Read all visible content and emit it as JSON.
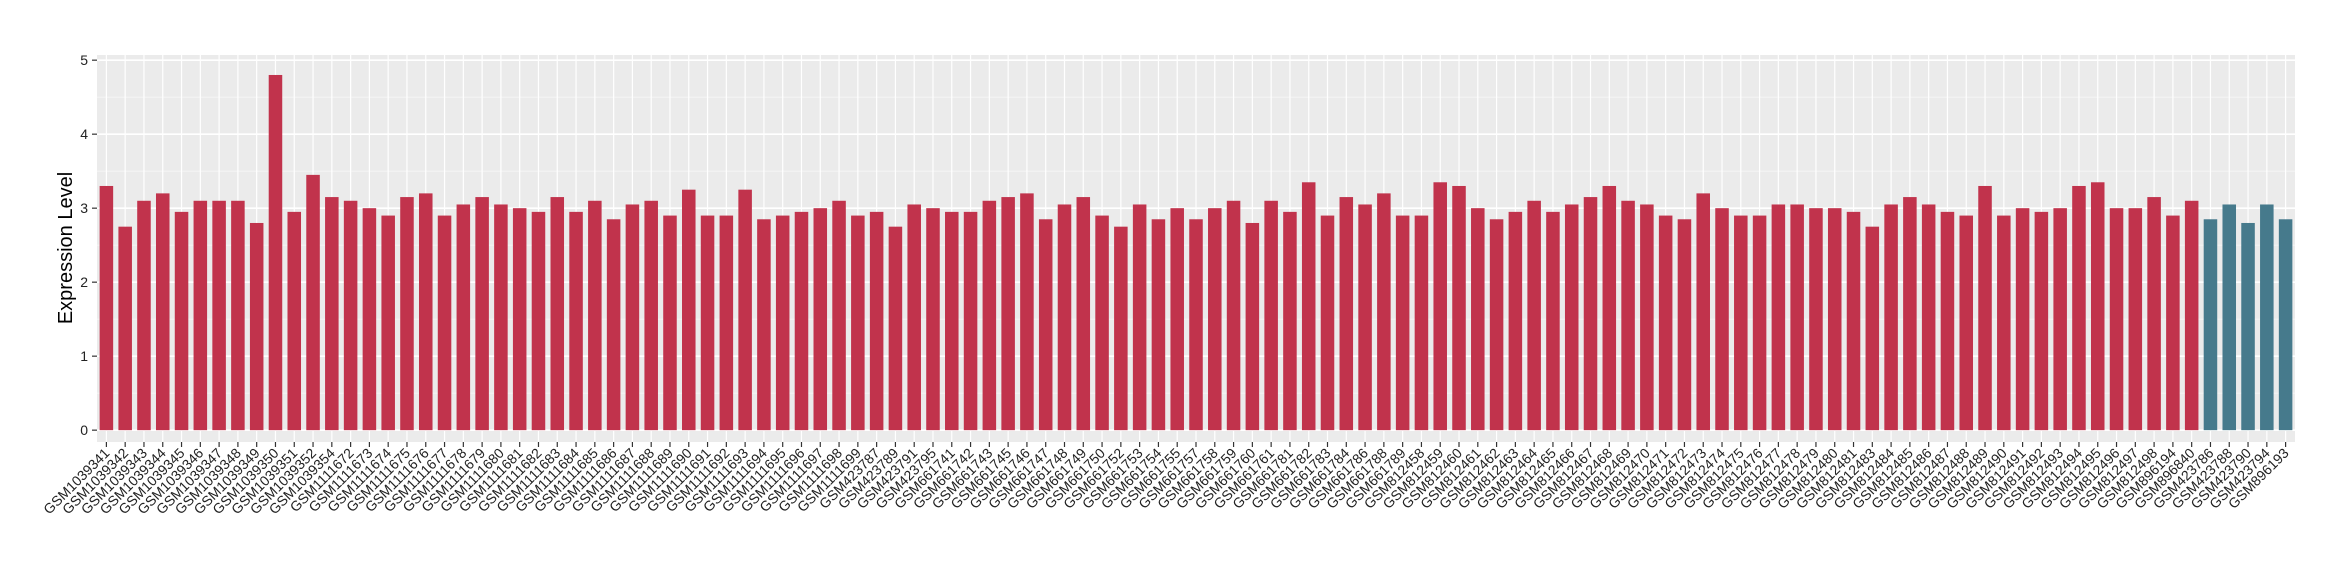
{
  "chart_data": {
    "type": "bar",
    "y_label": "Expression Level",
    "categories": [
      "GSM1039341",
      "GSM1039342",
      "GSM1039343",
      "GSM1039344",
      "GSM1039345",
      "GSM1039346",
      "GSM1039347",
      "GSM1039348",
      "GSM1039349",
      "GSM1039350",
      "GSM1039351",
      "GSM1039352",
      "GSM1039354",
      "GSM1111672",
      "GSM1111673",
      "GSM1111674",
      "GSM1111675",
      "GSM1111676",
      "GSM1111677",
      "GSM1111678",
      "GSM1111679",
      "GSM1111680",
      "GSM1111681",
      "GSM1111682",
      "GSM1111683",
      "GSM1111684",
      "GSM1111685",
      "GSM1111686",
      "GSM1111687",
      "GSM1111688",
      "GSM1111689",
      "GSM1111690",
      "GSM1111691",
      "GSM1111692",
      "GSM1111693",
      "GSM1111694",
      "GSM1111695",
      "GSM1111696",
      "GSM1111697",
      "GSM1111698",
      "GSM1111699",
      "GSM423787",
      "GSM423789",
      "GSM423791",
      "GSM423795",
      "GSM661741",
      "GSM661742",
      "GSM661743",
      "GSM661745",
      "GSM661746",
      "GSM661747",
      "GSM661748",
      "GSM661749",
      "GSM661750",
      "GSM661752",
      "GSM661753",
      "GSM661754",
      "GSM661755",
      "GSM661757",
      "GSM661758",
      "GSM661759",
      "GSM661760",
      "GSM661761",
      "GSM661781",
      "GSM661782",
      "GSM661783",
      "GSM661784",
      "GSM661786",
      "GSM661788",
      "GSM661789",
      "GSM812458",
      "GSM812459",
      "GSM812460",
      "GSM812461",
      "GSM812462",
      "GSM812463",
      "GSM812464",
      "GSM812465",
      "GSM812466",
      "GSM812467",
      "GSM812468",
      "GSM812469",
      "GSM812470",
      "GSM812471",
      "GSM812472",
      "GSM812473",
      "GSM812474",
      "GSM812475",
      "GSM812476",
      "GSM812477",
      "GSM812478",
      "GSM812479",
      "GSM812480",
      "GSM812481",
      "GSM812483",
      "GSM812484",
      "GSM812485",
      "GSM812486",
      "GSM812487",
      "GSM812488",
      "GSM812489",
      "GSM812490",
      "GSM812491",
      "GSM812492",
      "GSM812493",
      "GSM812494",
      "GSM812495",
      "GSM812496",
      "GSM812497",
      "GSM812498",
      "GSM896194",
      "GSM896840",
      "GSM423786",
      "GSM423788",
      "GSM423790",
      "GSM423794",
      "GSM896193"
    ],
    "values": [
      3.3,
      2.75,
      3.1,
      3.2,
      2.95,
      3.1,
      3.1,
      3.1,
      2.8,
      4.8,
      2.95,
      3.45,
      3.15,
      3.1,
      3.0,
      2.9,
      3.15,
      3.2,
      2.9,
      3.05,
      3.15,
      3.05,
      3.0,
      2.95,
      3.15,
      2.95,
      3.1,
      2.85,
      3.05,
      3.1,
      2.9,
      3.25,
      2.9,
      2.9,
      3.25,
      2.85,
      2.9,
      2.95,
      3.0,
      3.1,
      2.9,
      2.95,
      2.75,
      3.05,
      3.0,
      2.95,
      2.95,
      3.1,
      3.15,
      3.2,
      2.85,
      3.05,
      3.15,
      2.9,
      2.75,
      3.05,
      2.85,
      3.0,
      2.85,
      3.0,
      3.1,
      2.8,
      3.1,
      2.95,
      3.35,
      2.9,
      3.15,
      3.05,
      3.2,
      2.9,
      2.9,
      3.35,
      3.3,
      3.0,
      2.85,
      2.95,
      3.1,
      2.95,
      3.05,
      3.15,
      3.3,
      3.1,
      3.05,
      2.9,
      2.85,
      3.2,
      3.0,
      2.9,
      2.9,
      3.05,
      3.05,
      3.0,
      3.0,
      2.95,
      2.75,
      3.05,
      3.15,
      3.05,
      2.95,
      2.9,
      3.3,
      2.9,
      3.0,
      2.95,
      3.0,
      3.3,
      3.35,
      3.0,
      3.0,
      3.15,
      2.9,
      3.1,
      2.85,
      3.05,
      2.8,
      3.05,
      2.85
    ],
    "colors": [
      "#c1334c",
      "#c1334c",
      "#c1334c",
      "#c1334c",
      "#c1334c",
      "#c1334c",
      "#c1334c",
      "#c1334c",
      "#c1334c",
      "#c1334c",
      "#c1334c",
      "#c1334c",
      "#c1334c",
      "#c1334c",
      "#c1334c",
      "#c1334c",
      "#c1334c",
      "#c1334c",
      "#c1334c",
      "#c1334c",
      "#c1334c",
      "#c1334c",
      "#c1334c",
      "#c1334c",
      "#c1334c",
      "#c1334c",
      "#c1334c",
      "#c1334c",
      "#c1334c",
      "#c1334c",
      "#c1334c",
      "#c1334c",
      "#c1334c",
      "#c1334c",
      "#c1334c",
      "#c1334c",
      "#c1334c",
      "#c1334c",
      "#c1334c",
      "#c1334c",
      "#c1334c",
      "#c1334c",
      "#c1334c",
      "#c1334c",
      "#c1334c",
      "#c1334c",
      "#c1334c",
      "#c1334c",
      "#c1334c",
      "#c1334c",
      "#c1334c",
      "#c1334c",
      "#c1334c",
      "#c1334c",
      "#c1334c",
      "#c1334c",
      "#c1334c",
      "#c1334c",
      "#c1334c",
      "#c1334c",
      "#c1334c",
      "#c1334c",
      "#c1334c",
      "#c1334c",
      "#c1334c",
      "#c1334c",
      "#c1334c",
      "#c1334c",
      "#c1334c",
      "#c1334c",
      "#c1334c",
      "#c1334c",
      "#c1334c",
      "#c1334c",
      "#c1334c",
      "#c1334c",
      "#c1334c",
      "#c1334c",
      "#c1334c",
      "#c1334c",
      "#c1334c",
      "#c1334c",
      "#c1334c",
      "#c1334c",
      "#c1334c",
      "#c1334c",
      "#c1334c",
      "#c1334c",
      "#c1334c",
      "#c1334c",
      "#c1334c",
      "#c1334c",
      "#c1334c",
      "#c1334c",
      "#c1334c",
      "#c1334c",
      "#c1334c",
      "#c1334c",
      "#c1334c",
      "#c1334c",
      "#c1334c",
      "#c1334c",
      "#c1334c",
      "#c1334c",
      "#c1334c",
      "#c1334c",
      "#c1334c",
      "#c1334c",
      "#c1334c",
      "#c1334c",
      "#c1334c",
      "#c1334c",
      "#467a8c",
      "#467a8c",
      "#467a8c",
      "#467a8c",
      "#467a8c"
    ],
    "ylim": [
      -0.16,
      5.07
    ],
    "yticks": [
      0,
      1,
      2,
      3,
      4,
      5
    ],
    "grid": true
  }
}
